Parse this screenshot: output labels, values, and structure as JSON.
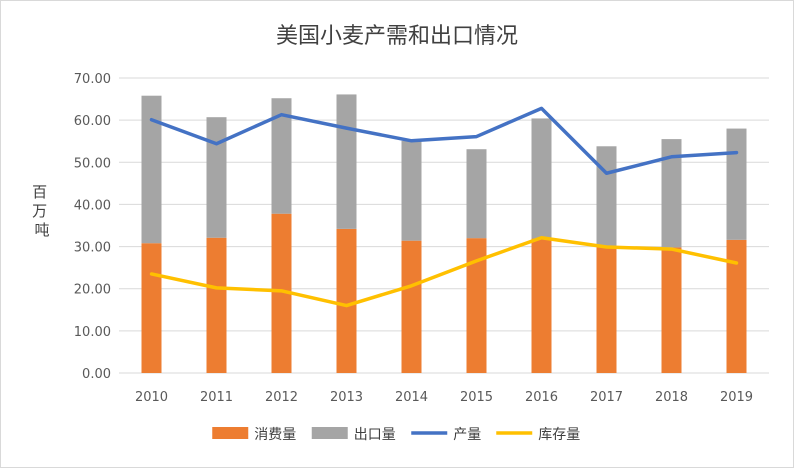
{
  "chart_data": {
    "type": "bar",
    "title": "美国小麦产需和出口情况",
    "ylabel": "百万吨",
    "xlabel": "",
    "ylim": [
      0,
      70
    ],
    "yticks": [
      "0.00",
      "10.00",
      "20.00",
      "30.00",
      "40.00",
      "50.00",
      "60.00",
      "70.00"
    ],
    "categories": [
      "2010",
      "2011",
      "2012",
      "2013",
      "2014",
      "2015",
      "2016",
      "2017",
      "2018",
      "2019"
    ],
    "stacked": true,
    "series": [
      {
        "name": "消费量",
        "kind": "bar",
        "color": "#ed7d31",
        "values": [
          30.8,
          32.1,
          37.8,
          34.2,
          31.4,
          32.0,
          31.9,
          29.8,
          29.8,
          31.6
        ]
      },
      {
        "name": "出口量",
        "kind": "bar",
        "color": "#a5a5a5",
        "values": [
          35.0,
          28.6,
          27.4,
          31.9,
          23.7,
          21.1,
          28.5,
          24.0,
          25.7,
          26.4
        ]
      },
      {
        "name": "产量",
        "kind": "line",
        "color": "#4472c4",
        "values": [
          60.1,
          54.4,
          61.3,
          58.1,
          55.1,
          56.1,
          62.8,
          47.4,
          51.3,
          52.3
        ]
      },
      {
        "name": "库存量",
        "kind": "line",
        "color": "#ffc000",
        "values": [
          23.5,
          20.2,
          19.5,
          16.0,
          20.7,
          26.6,
          32.1,
          29.9,
          29.4,
          26.1
        ]
      }
    ],
    "grid": true,
    "legend": "bottom"
  }
}
